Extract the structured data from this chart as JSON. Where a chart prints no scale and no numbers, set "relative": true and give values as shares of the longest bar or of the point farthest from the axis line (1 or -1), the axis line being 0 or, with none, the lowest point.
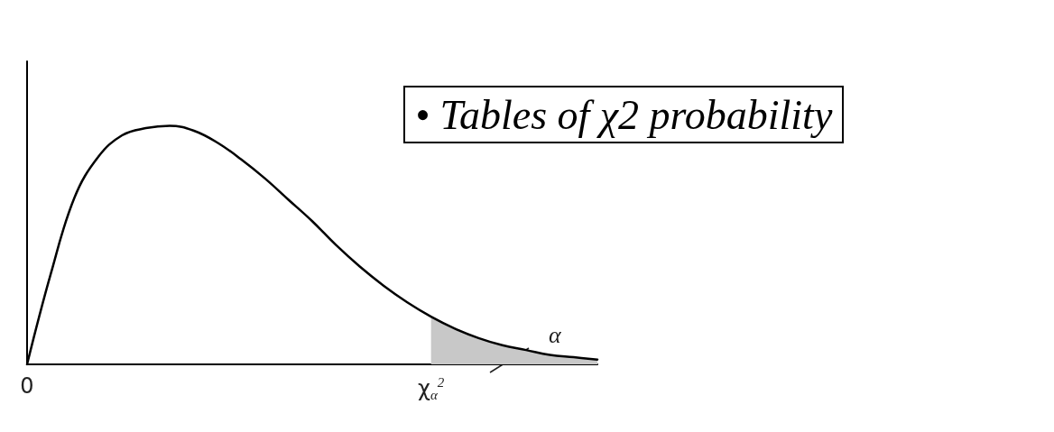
{
  "chart_data": {
    "type": "line",
    "title": "• Tables of χ2 probability",
    "relative": true,
    "categories": [
      "0",
      null,
      null,
      null,
      null,
      null,
      null,
      null,
      null,
      null,
      null,
      null,
      null,
      null,
      null,
      null,
      null,
      "χ$_{α}$$^{2}$",
      null,
      null,
      null,
      null,
      null,
      null,
      null
    ],
    "series": [
      {
        "color": "#000000",
        "values": [
          0,
          0.38,
          0.7,
          0.87,
          0.96,
          0.99,
          1.0,
          0.98,
          0.93,
          0.86,
          0.78,
          0.69,
          0.6,
          0.5,
          0.41,
          0.33,
          0.26,
          0.2,
          0.15,
          0.11,
          0.08,
          0.06,
          0.04,
          0.03,
          0.02
        ]
      },
      {
        "type": "area",
        "color": "#c8c8c8",
        "values": [
          null,
          null,
          null,
          null,
          null,
          null,
          null,
          null,
          null,
          null,
          null,
          null,
          null,
          null,
          null,
          null,
          null,
          0.2,
          0.15,
          0.11,
          0.08,
          0.06,
          0.04,
          0.03,
          0.02
        ]
      }
    ],
    "annotations": [
      "α"
    ],
    "grid": false,
    "marker": "none",
    "line_style": "solid"
  }
}
